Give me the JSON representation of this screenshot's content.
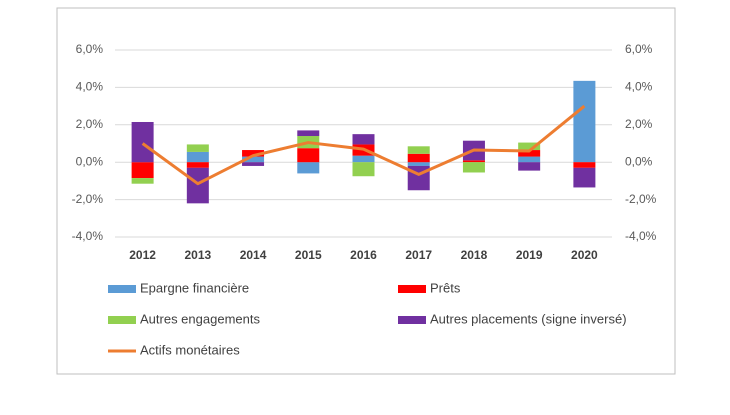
{
  "chart_data": {
    "type": "bar-line",
    "categories": [
      "2012",
      "2013",
      "2014",
      "2015",
      "2016",
      "2017",
      "2018",
      "2019",
      "2020"
    ],
    "series": [
      {
        "name": "Epargne financière",
        "type": "bar",
        "color": "#5b9bd5",
        "values": [
          0,
          0.55,
          0.3,
          -0.6,
          0.35,
          -0.2,
          0,
          0.3,
          4.35
        ]
      },
      {
        "name": "Prêts",
        "type": "bar",
        "color": "#ff0000",
        "values": [
          -0.85,
          -0.3,
          0.35,
          0.75,
          0.6,
          0.45,
          0.1,
          0.35,
          -0.3
        ]
      },
      {
        "name": "Autres engagements",
        "type": "bar",
        "color": "#92d050",
        "values": [
          -0.3,
          0.4,
          0,
          0.65,
          -0.75,
          0.4,
          -0.55,
          0.4,
          0
        ]
      },
      {
        "name": "Autres placements (signe inversé)",
        "type": "bar",
        "color": "#7030a0",
        "values": [
          2.15,
          -1.9,
          -0.2,
          0.3,
          0.55,
          -1.3,
          1.05,
          -0.45,
          -1.05
        ]
      },
      {
        "name": "Actifs monétaires",
        "type": "line",
        "axis": "y2",
        "color": "#ed7d31",
        "values": [
          1.0,
          -1.15,
          0.35,
          1.05,
          0.7,
          -0.65,
          0.65,
          0.6,
          3.0
        ]
      }
    ],
    "ylim": [
      -4,
      6
    ],
    "yticks": [
      {
        "value": 6,
        "label": "6,0%"
      },
      {
        "value": 4,
        "label": "4,0%"
      },
      {
        "value": 2,
        "label": "2,0%"
      },
      {
        "value": 0,
        "label": "0,0%"
      },
      {
        "value": -2,
        "label": "-2,0%"
      },
      {
        "value": -4,
        "label": "-4,0%"
      }
    ],
    "y2lim": [
      -4,
      6
    ],
    "y2ticks": [
      {
        "value": 6,
        "label": "6,0%"
      },
      {
        "value": 4,
        "label": "4,0%"
      },
      {
        "value": 2,
        "label": "2,0%"
      },
      {
        "value": 0,
        "label": "0,0%"
      },
      {
        "value": -2,
        "label": "-2,0%"
      },
      {
        "value": -4,
        "label": "-4,0%"
      }
    ],
    "grid": true
  }
}
